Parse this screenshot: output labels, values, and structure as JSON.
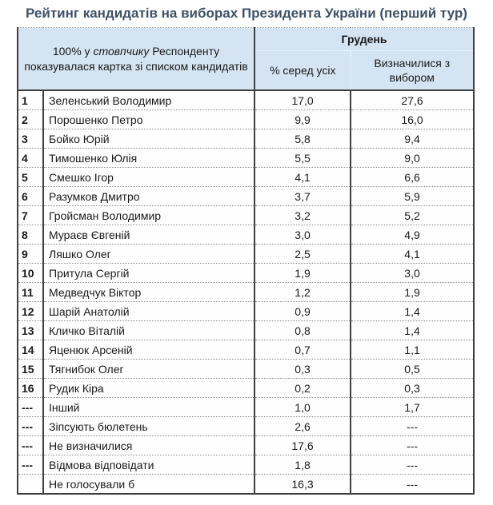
{
  "title": "Рейтинг кандидатів на виборах Президента України (перший тур)",
  "header": {
    "note_before": "100% у ",
    "note_italic": "стовпчику",
    "note_after": " Респонденту показувалася картка зі списком кандидатів",
    "month": "Грудень",
    "col_all": "% серед усіх",
    "col_decided": "Визначилися з вибором"
  },
  "colors": {
    "header_bg": "#d4e4f2",
    "title_color": "#3f5266",
    "border_dark": "#3f3f3f",
    "border_dotted": "#8f8f8f"
  },
  "chart_data": {
    "type": "table",
    "title": "Рейтинг кандидатів на виборах Президента України (перший тур)",
    "columns": [
      "№",
      "100% у стовпчику Респонденту показувалася картка зі списком кандидатів",
      "Грудень — % серед усіх",
      "Грудень — Визначилися з вибором"
    ],
    "decimal_separator": ",",
    "rows": [
      {
        "rank": "1",
        "name": "Зеленський Володимир",
        "all": "17,0",
        "decided": "27,6"
      },
      {
        "rank": "2",
        "name": "Порошенко Петро",
        "all": "9,9",
        "decided": "16,0"
      },
      {
        "rank": "3",
        "name": "Бойко Юрій",
        "all": "5,8",
        "decided": "9,4"
      },
      {
        "rank": "4",
        "name": "Тимошенко Юлія",
        "all": "5,5",
        "decided": "9,0"
      },
      {
        "rank": "5",
        "name": "Смешко Ігор",
        "all": "4,1",
        "decided": "6,6"
      },
      {
        "rank": "6",
        "name": "Разумков Дмитро",
        "all": "3,7",
        "decided": "5,9"
      },
      {
        "rank": "7",
        "name": "Гройсман Володимир",
        "all": "3,2",
        "decided": "5,2"
      },
      {
        "rank": "8",
        "name": "Мураєв Євгеній",
        "all": "3,0",
        "decided": "4,9"
      },
      {
        "rank": "9",
        "name": "Ляшко Олег",
        "all": "2,5",
        "decided": "4,1"
      },
      {
        "rank": "10",
        "name": "Притула Сергій",
        "all": "1,9",
        "decided": "3,0"
      },
      {
        "rank": "11",
        "name": "Медведчук Віктор",
        "all": "1,2",
        "decided": "1,9"
      },
      {
        "rank": "12",
        "name": "Шарій Анатолій",
        "all": "0,9",
        "decided": "1,4"
      },
      {
        "rank": "13",
        "name": "Кличко Віталій",
        "all": "0,8",
        "decided": "1,4"
      },
      {
        "rank": "14",
        "name": "Яценюк Арсеній",
        "all": "0,7",
        "decided": "1,1"
      },
      {
        "rank": "15",
        "name": "Тягнибок Олег",
        "all": "0,3",
        "decided": "0,5"
      },
      {
        "rank": "16",
        "name": "Рудик Кіра",
        "all": "0,2",
        "decided": "0,3"
      },
      {
        "rank": "---",
        "name": "Інший",
        "all": "1,0",
        "decided": "1,7"
      },
      {
        "rank": "---",
        "name": "Зіпсують бюлетень",
        "all": "2,6",
        "decided": "---"
      },
      {
        "rank": "---",
        "name": "Не визначилися",
        "all": "17,6",
        "decided": "---"
      },
      {
        "rank": "---",
        "name": "Відмова відповідати",
        "all": "1,8",
        "decided": "---"
      },
      {
        "rank": "",
        "name": "Не голосували б",
        "all": "16,3",
        "decided": "---"
      }
    ]
  }
}
